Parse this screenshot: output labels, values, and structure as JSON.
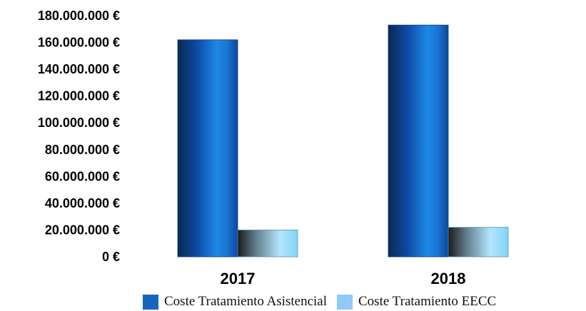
{
  "chart_data": {
    "type": "bar",
    "categories": [
      "2017",
      "2018"
    ],
    "series": [
      {
        "name": "Coste Tratamiento Asistencial",
        "values": [
          162000000,
          173000000
        ],
        "color": "#1565c0"
      },
      {
        "name": "Coste Tratamiento EECC",
        "values": [
          20000000,
          22000000
        ],
        "color": "#90caf9"
      }
    ],
    "ylim": [
      0,
      180000000
    ],
    "yticks": [
      0,
      20000000,
      40000000,
      60000000,
      80000000,
      100000000,
      120000000,
      140000000,
      160000000,
      180000000
    ],
    "ytick_labels": [
      "0 €",
      "20.000.000 €",
      "40.000.000 €",
      "60.000.000 €",
      "80.000.000 €",
      "100.000.000 €",
      "120.000.000 €",
      "140.000.000 €",
      "160.000.000 €",
      "180.000.000 €"
    ],
    "grid": false,
    "legend": "bottom",
    "title": "",
    "xlabel": "",
    "ylabel": ""
  }
}
